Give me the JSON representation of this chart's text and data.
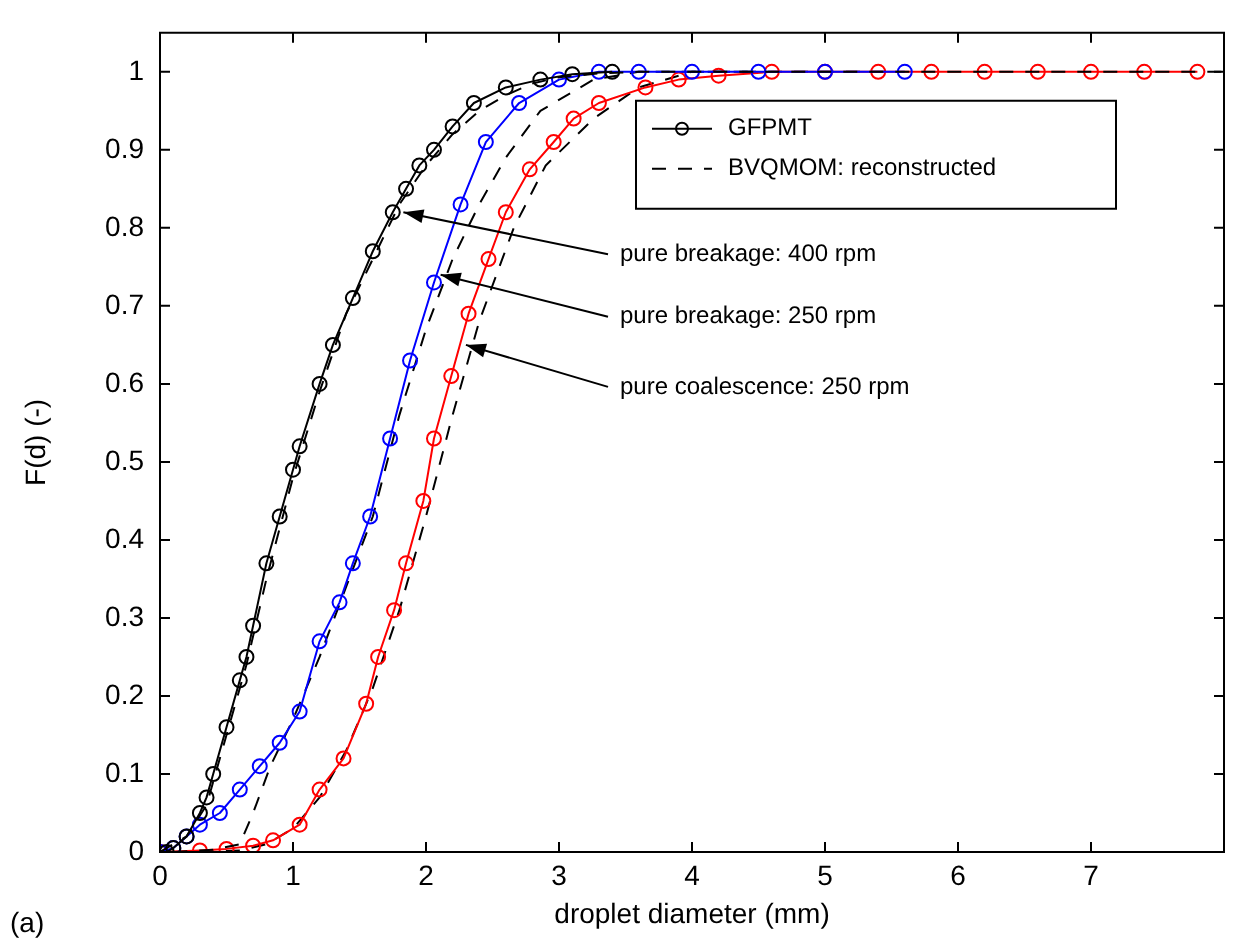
{
  "chart_data": {
    "type": "line",
    "xlabel": "droplet diameter (mm)",
    "ylabel": "F(d) (-)",
    "xlim": [
      0,
      8
    ],
    "xticks": [
      0,
      1,
      2,
      3,
      4,
      5,
      6,
      7
    ],
    "ylim": [
      0,
      1.05
    ],
    "yticks": [
      0,
      0.1,
      0.2,
      0.3,
      0.4,
      0.5,
      0.6,
      0.7,
      0.8,
      0.9,
      1
    ],
    "grid": false,
    "legend": "top right",
    "series": [
      {
        "name": "GFPMT",
        "color": "#000000",
        "marker": "circle",
        "line_style": "solid",
        "x": [
          0.05,
          0.1,
          0.2,
          0.3,
          0.35,
          0.4,
          0.5,
          0.6,
          0.65,
          0.7,
          0.8,
          0.9,
          1.0,
          1.05,
          1.2,
          1.3,
          1.45,
          1.6,
          1.75,
          1.85,
          1.95,
          2.06,
          2.2,
          2.36,
          2.6,
          2.86,
          3.1,
          3.4
        ],
        "values": [
          0,
          0.005,
          0.02,
          0.05,
          0.07,
          0.1,
          0.16,
          0.22,
          0.25,
          0.29,
          0.37,
          0.43,
          0.49,
          0.52,
          0.6,
          0.65,
          0.71,
          0.77,
          0.82,
          0.85,
          0.88,
          0.9,
          0.93,
          0.96,
          0.98,
          0.99,
          0.997,
          1
        ]
      },
      {
        "name": "BVQMOM: reconstructed",
        "color": "#000000",
        "marker": "none",
        "line_style": "dashed",
        "x": [
          0,
          0.2,
          0.35,
          0.5,
          0.65,
          0.8,
          1.0,
          1.2,
          1.4,
          1.6,
          1.8,
          2.0,
          2.2,
          2.4,
          2.6,
          2.8,
          3.0,
          3.3,
          3.6,
          8
        ],
        "values": [
          0,
          0.02,
          0.06,
          0.15,
          0.24,
          0.35,
          0.48,
          0.59,
          0.69,
          0.76,
          0.83,
          0.88,
          0.92,
          0.95,
          0.97,
          0.985,
          0.993,
          0.998,
          1,
          1
        ]
      },
      {
        "color": "#0000ff",
        "marker": "circle",
        "line_style": "solid",
        "x": [
          0,
          0.1,
          0.2,
          0.3,
          0.45,
          0.6,
          0.75,
          0.9,
          1.05,
          1.2,
          1.35,
          1.45,
          1.58,
          1.73,
          1.88,
          2.06,
          2.26,
          2.45,
          2.7,
          3.0,
          3.3,
          3.6,
          4.0,
          4.5,
          5.0,
          5.6
        ],
        "values": [
          0,
          0.005,
          0.02,
          0.035,
          0.05,
          0.08,
          0.11,
          0.14,
          0.18,
          0.27,
          0.32,
          0.37,
          0.43,
          0.53,
          0.63,
          0.73,
          0.83,
          0.91,
          0.96,
          0.99,
          1,
          1,
          1,
          1,
          1,
          1
        ]
      },
      {
        "color": "#000000",
        "marker": "none",
        "line_style": "dashed",
        "x": [
          0.1,
          0.4,
          0.6,
          0.7,
          0.83,
          1.0,
          1.2,
          1.4,
          1.6,
          1.8,
          2.0,
          2.2,
          2.4,
          2.6,
          2.86,
          3.26,
          3.6,
          4.5
        ],
        "values": [
          0,
          0.003,
          0.01,
          0.05,
          0.11,
          0.17,
          0.25,
          0.34,
          0.43,
          0.56,
          0.67,
          0.76,
          0.83,
          0.89,
          0.95,
          0.99,
          1,
          1
        ]
      },
      {
        "color": "#ff0000",
        "marker": "circle",
        "line_style": "solid",
        "x": [
          0,
          0.3,
          0.5,
          0.7,
          0.85,
          1.05,
          1.2,
          1.38,
          1.55,
          1.64,
          1.76,
          1.85,
          1.98,
          2.06,
          2.19,
          2.32,
          2.47,
          2.6,
          2.78,
          2.96,
          3.11,
          3.3,
          3.65,
          3.9,
          4.2,
          4.6,
          5.0,
          5.4,
          5.8,
          6.2,
          6.6,
          7.0,
          7.4,
          7.8
        ],
        "values": [
          0,
          0.002,
          0.004,
          0.008,
          0.015,
          0.035,
          0.08,
          0.12,
          0.19,
          0.25,
          0.31,
          0.37,
          0.45,
          0.53,
          0.61,
          0.69,
          0.76,
          0.82,
          0.875,
          0.91,
          0.94,
          0.96,
          0.98,
          0.99,
          0.995,
          1,
          1,
          1,
          1,
          1,
          1,
          1,
          1,
          1
        ]
      },
      {
        "color": "#000000",
        "marker": "none",
        "line_style": "dashed",
        "x": [
          0.3,
          0.6,
          0.8,
          1.0,
          1.2,
          1.4,
          1.6,
          1.8,
          2.0,
          2.2,
          2.4,
          2.66,
          2.9,
          3.26,
          3.6,
          4.0,
          5.5
        ],
        "values": [
          0,
          0.002,
          0.01,
          0.03,
          0.07,
          0.13,
          0.21,
          0.31,
          0.43,
          0.56,
          0.68,
          0.8,
          0.88,
          0.94,
          0.98,
          1,
          1
        ]
      }
    ],
    "annotations": [
      {
        "text": "pure breakage: 400 rpm",
        "x": 1.83,
        "y": 0.82
      },
      {
        "text": "pure breakage: 250 rpm",
        "x": 2.11,
        "y": 0.74
      },
      {
        "text": "pure coalescence: 250 rpm",
        "x": 2.3,
        "y": 0.65
      },
      "(a)"
    ]
  }
}
